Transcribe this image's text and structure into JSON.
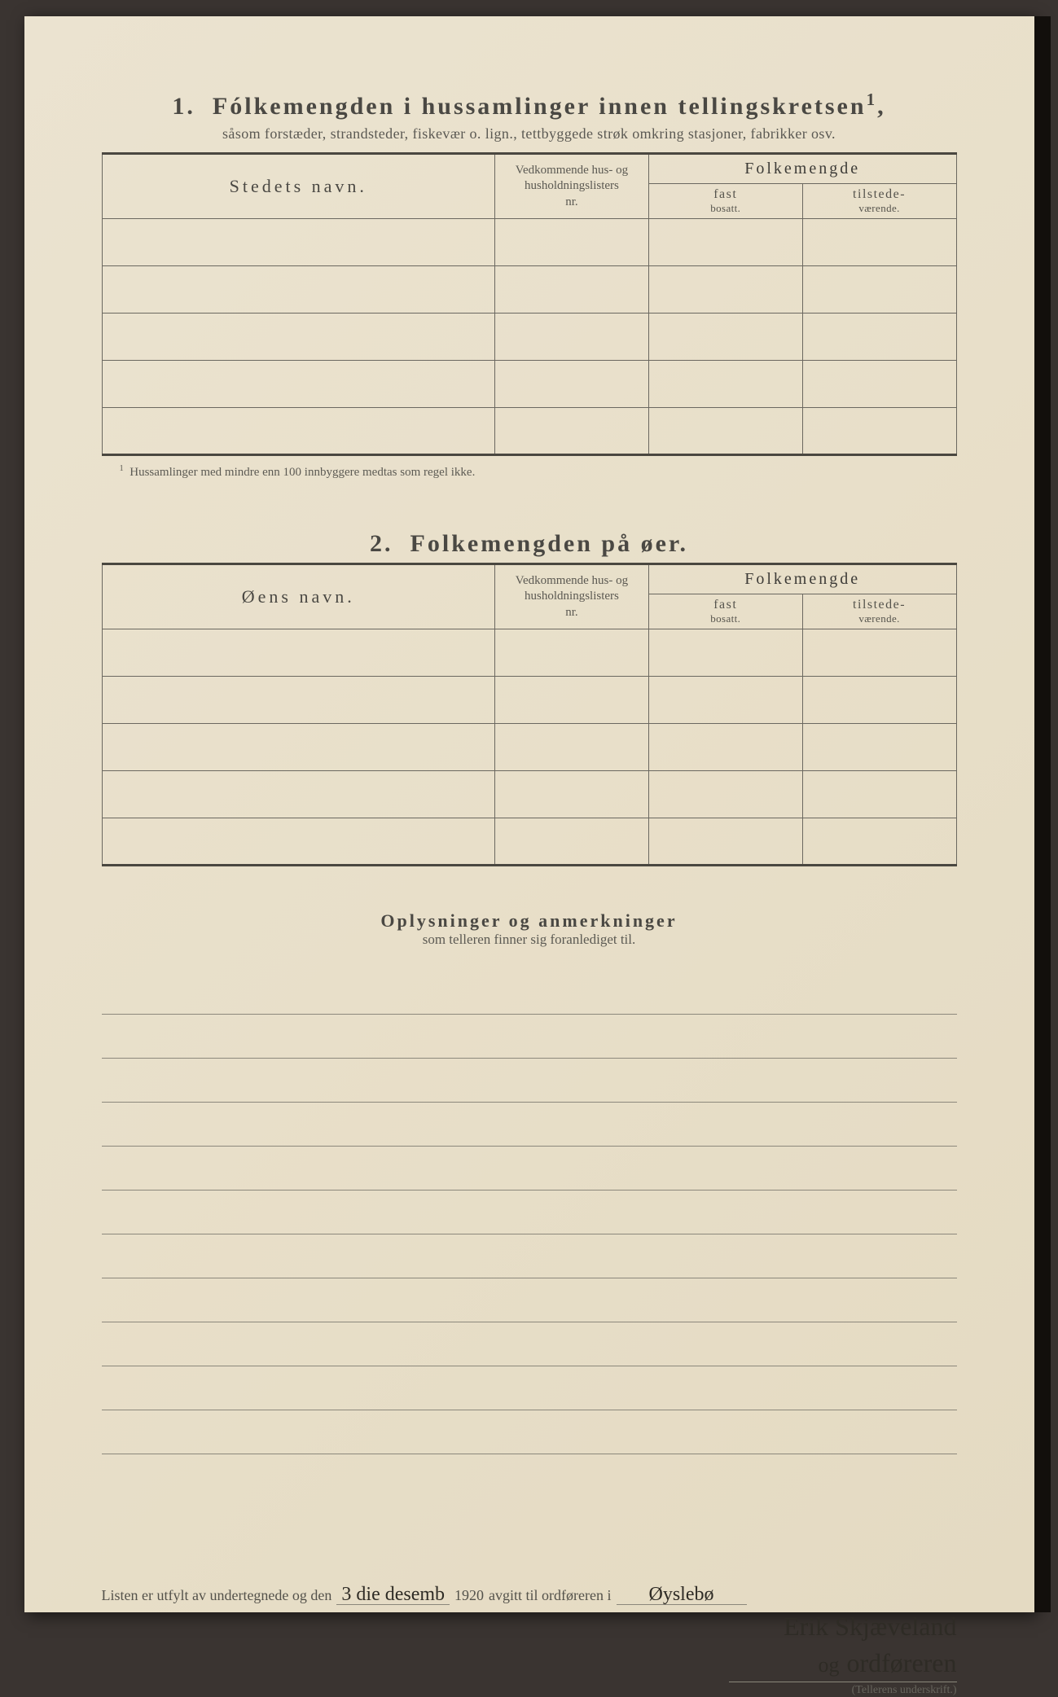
{
  "page_bg": "#ebe3d0",
  "text_color": "#3d3b37",
  "border_color": "#6b6860",
  "thick_border_color": "#4a4740",
  "section1": {
    "number": "1.",
    "title": "Fólkemengden i hussamlinger innen tellingskretsen",
    "title_sup": "1",
    "subtitle": "såsom forstæder, strandsteder, fiskevær o. lign., tettbyggede strøk omkring stasjoner, fabrikker osv.",
    "col_name": "Stedets navn.",
    "col_ref_l1": "Vedkommende hus- og",
    "col_ref_l2": "husholdningslisters",
    "col_ref_l3": "nr.",
    "col_folke": "Folkemengde",
    "col_fast": "fast",
    "col_fast_sub": "bosatt.",
    "col_tilst": "tilstede-",
    "col_tilst_sub": "værende.",
    "row_count": 5,
    "footnote_marker": "1",
    "footnote": "Hussamlinger med mindre enn 100 innbyggere medtas som regel ikke."
  },
  "section2": {
    "number": "2.",
    "title": "Folkemengden på øer.",
    "col_name": "Øens navn.",
    "col_ref_l1": "Vedkommende hus- og",
    "col_ref_l2": "husholdningslisters",
    "col_ref_l3": "nr.",
    "col_folke": "Folkemengde",
    "col_fast": "fast",
    "col_fast_sub": "bosatt.",
    "col_tilst": "tilstede-",
    "col_tilst_sub": "værende.",
    "row_count": 5
  },
  "remarks": {
    "title": "Oplysninger og anmerkninger",
    "subtitle": "som telleren finner sig foranlediget til.",
    "line_count": 11
  },
  "signature": {
    "prefix": "Listen er utfylt av undertegnede og den",
    "day": "3 die",
    "month": "desemb",
    "year_suffix": "1920",
    "mid": "avgitt til ordføreren i",
    "place": "Øyslebø",
    "name": "Erik Skjæveland",
    "role_prefix": "og",
    "role": "ordføreren",
    "caption": "(Tellerens underskrift.)"
  }
}
